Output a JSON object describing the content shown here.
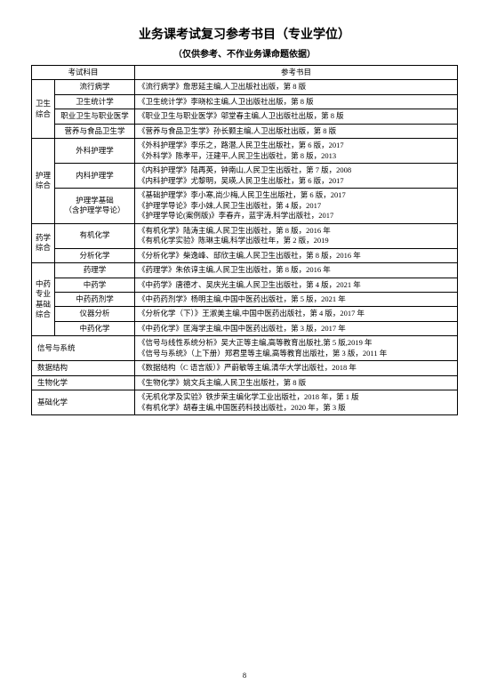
{
  "title": "业务课考试复习参考书目（专业学位）",
  "subtitle": "（仅供参考、不作业务课命题依据）",
  "headers": {
    "col12": "考试科目",
    "col3": "参考书目"
  },
  "groups": [
    {
      "cat": "卫生综合",
      "rows": [
        {
          "subj": "流行病学",
          "ref": "《流行病学》詹思延主编,人卫出版社出版，第 8 版"
        },
        {
          "subj": "卫生统计学",
          "ref": "《卫生统计学》李晓松主编,人卫出版社出版，第 8 版"
        },
        {
          "subj": "职业卫生与职业医学",
          "ref": "《职业卫生与职业医学》邬堂春主编,人卫出版社出版，第 8 版"
        },
        {
          "subj": "营养与食品卫生学",
          "ref": "《营养与食品卫生学》孙长颢主编,人卫出版社出版，第 8 版"
        }
      ]
    },
    {
      "cat": "护理综合",
      "rows": [
        {
          "subj": "外科护理学",
          "ref": "《外科护理学》李乐之，路潜,人民卫生出版社，第 6 版，2017\n《外科学》陈孝平，汪建平,人民卫生出版社，第 8 版，2013"
        },
        {
          "subj": "内科护理学",
          "ref": "《内科护理学》陆再英，钟南山,人民卫生出版社，第 7 版，2008\n《内科护理学》尤黎明，吴瑛,人民卫生出版社，第 6 版，2017"
        },
        {
          "subj": "护理学基础\n（含护理学导论）",
          "ref": "《基础护理学》李小寒,尚少梅,人民卫生出版社，第 6 版，2017\n《护理学导论》李小妹,人民卫生出版社，第 4 版，2017\n《护理学导论(案例版)》李春卉，蓝宇涛,科学出版社，2017"
        }
      ]
    },
    {
      "cat": "药学综合",
      "rows": [
        {
          "subj": "有机化学",
          "ref": "《有机化学》陆涛主编,人民卫生出版社，第 8 版，2016 年\n《有机化学实验》陈琳主编,科学出版社年，第 2 版，2019"
        },
        {
          "subj": "分析化学",
          "ref": "《分析化学》柴逸峰、邸欣主编,人民卫生出版社，第 8 版，2016 年"
        }
      ]
    },
    {
      "cat": "中药专业基础综合",
      "rows": [
        {
          "subj": "药理学",
          "ref": "《药理学》朱依谆主编,人民卫生出版社，第 8 版，2016 年"
        },
        {
          "subj": "中药学",
          "ref": "《中药学》唐德才、吴庆光主编,人民卫生出版社，第 4 版，2021 年"
        },
        {
          "subj": "中药药剂学",
          "ref": "《中药药剂学》杨明主编,中国中医药出版社，第 5 版，2021 年"
        },
        {
          "subj": "仪器分析",
          "ref": "《分析化学（下）》王淑美主编,中国中医药出版社，第 4 版，2017 年"
        },
        {
          "subj": "中药化学",
          "ref": "《中药化学》匡海学主编,中国中医药出版社，第 3 版，2017 年"
        }
      ]
    }
  ],
  "flat": [
    {
      "subj": "信号与系统",
      "ref": "《信号与线性系统分析》吴大正等主编,高等教育出版社,第 5 版,2019 年\n《信号与系统》（上下册）郑君里等主编,高等教育出版社，第 3 版，2011 年"
    },
    {
      "subj": "数据结构",
      "ref": "《数据结构（C 语言版）》严蔚敏等主编,清华大学出版社，2018 年"
    },
    {
      "subj": "生物化学",
      "ref": "《生物化学》姚文兵主编,人民卫生出版社，第 8 版"
    },
    {
      "subj": "基础化学",
      "ref": "《无机化学及实验》铁步荣主编化学工业出版社，2018 年，第 1 版\n《有机化学》胡春主编,中国医药科技出版社，2020 年，第 3 版"
    }
  ],
  "page": "8"
}
